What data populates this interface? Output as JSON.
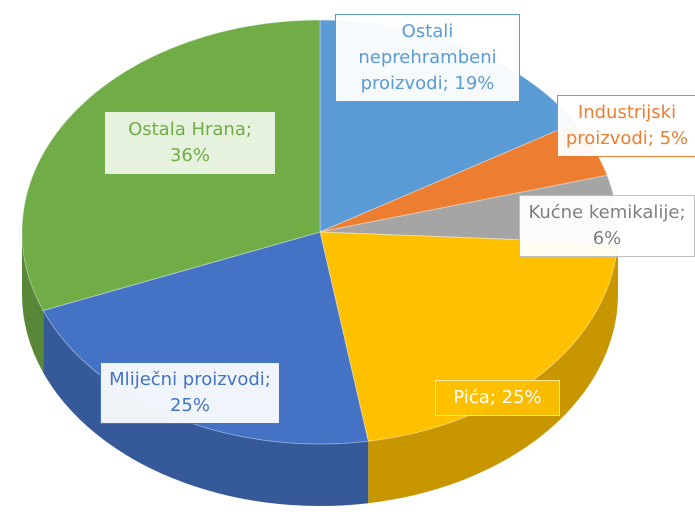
{
  "chart_data": {
    "type": "pie3d",
    "categories": [
      "Ostali neprehrambeni proizvodi",
      "Industrijski proizvodi",
      "Kućne kemikalije",
      "Pića",
      "Mliječni proizvodi",
      "Ostala Hrana"
    ],
    "values": [
      19,
      5,
      6,
      25,
      25,
      36
    ],
    "value_labels": [
      "Ostali neprehrambeni proizvodi; 19%",
      "Industrijski proizvodi; 5%",
      "Kućne kemikalije; 6%",
      "Pića; 25%",
      "Mliječni proizvodi; 25%",
      "Ostala Hrana; 36%"
    ],
    "colors": [
      "#5b9bd5",
      "#ed7d31",
      "#a5a5a5",
      "#ffc000",
      "#4472c4",
      "#70ad47"
    ]
  }
}
